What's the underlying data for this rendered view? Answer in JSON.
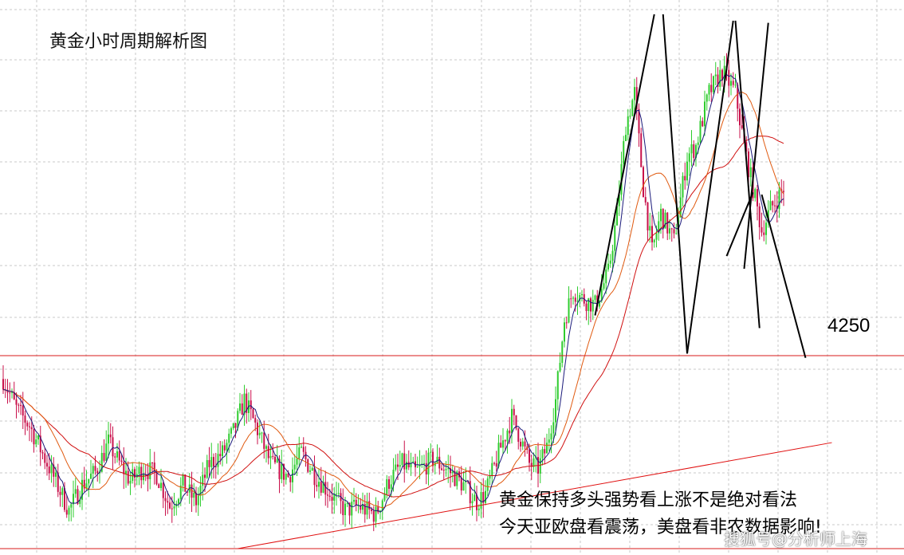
{
  "title": "黄金小时周期解析图",
  "price_label": "4250",
  "annotations": [
    "黄金保持多头强势看上涨不是绝对看法",
    "今天亚欧盘看震荡，美盘看非农数据影响!"
  ],
  "watermark": "搜狐号@分析师上海",
  "colors": {
    "bull": "#2ecc2e",
    "bear": "#c8104a",
    "ma_fast": "#1a1a7a",
    "ma_mid": "#e05a10",
    "ma_slow": "#d01010",
    "level_line": "#d81b1b",
    "trend_line": "#e01010",
    "pattern_line": "#000000",
    "grid": "#c8c8c8"
  },
  "chart_data": {
    "type": "candlestick",
    "title": "黄金小时周期解析图",
    "x_axis": "hourly bars",
    "y_range": [
      4160,
      4415
    ],
    "grid": true,
    "horizontal_levels": [
      4251,
      4160
    ],
    "level_label": "4250",
    "price_path": [
      [
        0,
        4240
      ],
      [
        6,
        4226
      ],
      [
        12,
        4218
      ],
      [
        22,
        4196
      ],
      [
        30,
        4178
      ],
      [
        36,
        4190
      ],
      [
        42,
        4196
      ],
      [
        48,
        4210
      ],
      [
        52,
        4202
      ],
      [
        58,
        4192
      ],
      [
        64,
        4198
      ],
      [
        70,
        4195
      ],
      [
        76,
        4180
      ],
      [
        82,
        4190
      ],
      [
        88,
        4182
      ],
      [
        94,
        4200
      ],
      [
        100,
        4205
      ],
      [
        105,
        4215
      ],
      [
        110,
        4230
      ],
      [
        116,
        4216
      ],
      [
        122,
        4200
      ],
      [
        130,
        4194
      ],
      [
        136,
        4205
      ],
      [
        142,
        4195
      ],
      [
        150,
        4185
      ],
      [
        156,
        4178
      ],
      [
        162,
        4180
      ],
      [
        170,
        4176
      ],
      [
        176,
        4192
      ],
      [
        182,
        4200
      ],
      [
        188,
        4196
      ],
      [
        196,
        4202
      ],
      [
        204,
        4196
      ],
      [
        210,
        4190
      ],
      [
        216,
        4182
      ],
      [
        220,
        4186
      ],
      [
        226,
        4205
      ],
      [
        232,
        4222
      ],
      [
        236,
        4212
      ],
      [
        240,
        4200
      ],
      [
        244,
        4198
      ],
      [
        248,
        4208
      ],
      [
        252,
        4230
      ],
      [
        256,
        4268
      ],
      [
        260,
        4282
      ],
      [
        264,
        4278
      ],
      [
        270,
        4275
      ],
      [
        276,
        4290
      ],
      [
        280,
        4318
      ],
      [
        284,
        4360
      ],
      [
        288,
        4375
      ],
      [
        292,
        4330
      ],
      [
        296,
        4300
      ],
      [
        300,
        4318
      ],
      [
        306,
        4305
      ],
      [
        312,
        4345
      ],
      [
        316,
        4350
      ],
      [
        322,
        4375
      ],
      [
        328,
        4385
      ],
      [
        334,
        4375
      ],
      [
        338,
        4350
      ],
      [
        342,
        4330
      ],
      [
        346,
        4310
      ],
      [
        350,
        4320
      ],
      [
        356,
        4330
      ]
    ],
    "trend_support": {
      "from": [
        107,
        4160
      ],
      "to": [
        378,
        4210
      ]
    },
    "projection": [
      [
        330,
        4298
      ],
      [
        342,
        4328
      ],
      [
        346,
        4327
      ],
      [
        366,
        4250
      ]
    ]
  }
}
